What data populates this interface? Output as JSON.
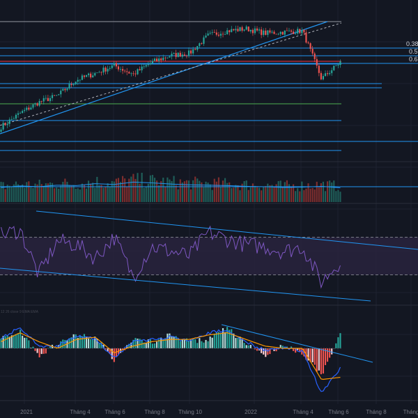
{
  "theme": {
    "background": "#131722",
    "grid": "#1e2230",
    "bull": "#26a69a",
    "bear": "#ef5350",
    "trendline": "#2196f3",
    "level_line": "#2196f3",
    "resistance_red": "#f23645",
    "support_green": "#4caf50",
    "rsi_line": "#7e57c2",
    "rsi_band_fill": "#2a2440",
    "macd_line": "#2962ff",
    "signal_line": "#ff9800",
    "axis_text": "#787b86"
  },
  "fib_labels": [
    "0.38",
    "0.5",
    "0.6"
  ],
  "macd_indicator_text": "12 26 close 9 EMA EMA",
  "time_axis": {
    "ticks": [
      "2021",
      "Tháng 4",
      "Tháng 6",
      "Tháng 8",
      "Tháng 10",
      "2022",
      "Tháng 4",
      "Tháng 6",
      "Tháng 8",
      "Tháng"
    ]
  },
  "chart_data": [
    {
      "type": "candlestick",
      "title": "",
      "x": [
        "2020-12",
        "2021-01",
        "2021-02",
        "2021-03",
        "2021-04",
        "2021-05",
        "2021-06",
        "2021-07",
        "2021-08",
        "2021-09",
        "2021-10",
        "2021-11",
        "2021-12",
        "2022-01",
        "2022-02",
        "2022-03",
        "2022-04",
        "2022-05",
        "2022-06"
      ],
      "close": [
        1.0,
        1.12,
        1.22,
        1.28,
        1.42,
        1.48,
        1.55,
        1.47,
        1.58,
        1.64,
        1.66,
        1.82,
        1.86,
        1.88,
        1.84,
        1.85,
        1.86,
        1.43,
        1.58
      ],
      "annotations": {
        "fib_levels": [
          "0.38",
          "0.5",
          "0.6"
        ],
        "horizontal_levels": 10,
        "trendlines": [
          "rising support",
          "dashed rising support"
        ]
      },
      "grid": true
    },
    {
      "type": "bar",
      "title": "",
      "series": [
        {
          "values": [
            38,
            42,
            40,
            44,
            43,
            48,
            46,
            52,
            50,
            47,
            45,
            44,
            43,
            41,
            40,
            38,
            39,
            41,
            37
          ]
        }
      ],
      "overlay": "moving average line"
    },
    {
      "type": "line",
      "title": "",
      "series": [
        {
          "values": [
            72,
            78,
            30,
            66,
            62,
            48,
            70,
            28,
            60,
            55,
            50,
            75,
            68,
            62,
            60,
            55,
            60,
            22,
            45
          ]
        }
      ],
      "ylim": [
        0,
        100
      ],
      "bands": [
        30,
        70
      ],
      "annotations": {
        "trendlines": [
          "falling resistance",
          "falling support"
        ]
      }
    },
    {
      "type": "bar",
      "title": "",
      "series": [
        {
          "values": [
            0.4,
            0.8,
            -0.3,
            0.2,
            0.6,
            0.5,
            -0.5,
            0.4,
            0.3,
            0.6,
            0.3,
            0.4,
            0.9,
            0.2,
            -0.3,
            0.1,
            -0.2,
            -1.2,
            0.6
          ]
        },
        {
          "values": [
            0.5,
            0.9,
            0.1,
            0.1,
            0.6,
            0.4,
            -0.4,
            0.3,
            0.4,
            0.5,
            0.3,
            0.7,
            0.8,
            0.3,
            -0.1,
            0.0,
            -0.1,
            -2.0,
            -0.9
          ]
        },
        {
          "values": [
            0.3,
            0.7,
            0.3,
            0.0,
            0.4,
            0.5,
            -0.2,
            0.1,
            0.3,
            0.4,
            0.4,
            0.6,
            0.7,
            0.4,
            0.1,
            0.0,
            0.0,
            -1.4,
            -1.3
          ]
        }
      ]
    }
  ]
}
